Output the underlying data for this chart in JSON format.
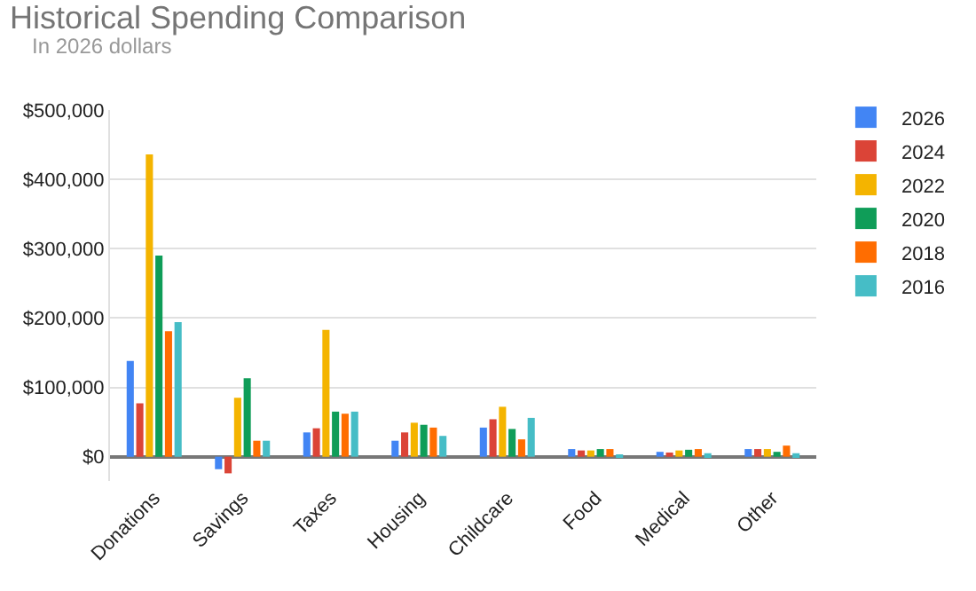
{
  "chart_data": {
    "type": "bar",
    "title": "Historical Spending Comparison",
    "subtitle": "In 2026 dollars",
    "categories": [
      "Donations",
      "Savings",
      "Taxes",
      "Housing",
      "Childcare",
      "Food",
      "Medical",
      "Other"
    ],
    "series": [
      {
        "name": "2026",
        "color": "#4285f4",
        "values": [
          138000,
          -18000,
          35000,
          23000,
          42000,
          11000,
          7000,
          11000
        ]
      },
      {
        "name": "2024",
        "color": "#db4437",
        "values": [
          77000,
          -24000,
          41000,
          35000,
          54000,
          9000,
          6000,
          11000
        ]
      },
      {
        "name": "2022",
        "color": "#f4b400",
        "values": [
          436000,
          85000,
          183000,
          49000,
          72000,
          9000,
          9000,
          11000
        ]
      },
      {
        "name": "2020",
        "color": "#0f9d58",
        "values": [
          290000,
          113000,
          65000,
          46000,
          40000,
          11000,
          10000,
          7000
        ]
      },
      {
        "name": "2018",
        "color": "#ff6d01",
        "values": [
          181000,
          23000,
          62000,
          42000,
          25000,
          11000,
          11000,
          16000
        ]
      },
      {
        "name": "2016",
        "color": "#46bdc6",
        "values": [
          194000,
          23000,
          65000,
          30000,
          56000,
          3000,
          5000,
          5000
        ]
      }
    ],
    "ylim": [
      -35000,
      500000
    ],
    "yticks": [
      {
        "value": 0,
        "label": "$0"
      },
      {
        "value": 100000,
        "label": "$100,000"
      },
      {
        "value": 200000,
        "label": "$200,000"
      },
      {
        "value": 300000,
        "label": "$300,000"
      },
      {
        "value": 400000,
        "label": "$400,000"
      },
      {
        "value": 500000,
        "label": "$500,000"
      }
    ],
    "grid": "y",
    "legend": "right"
  }
}
